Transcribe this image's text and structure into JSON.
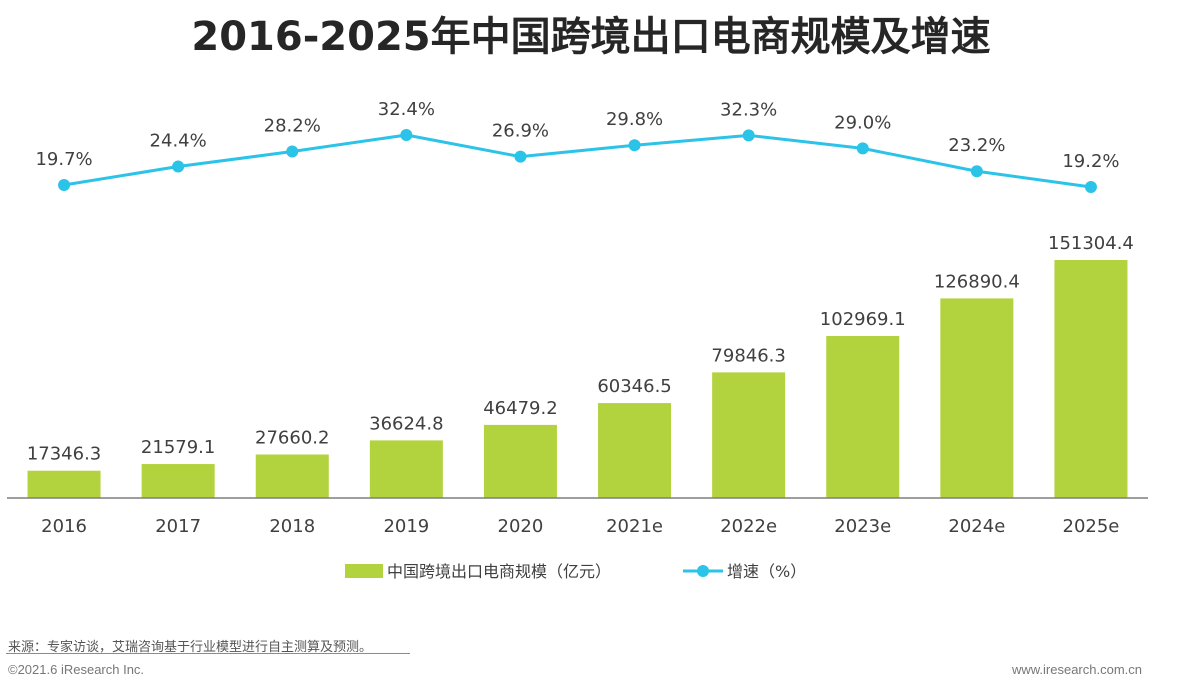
{
  "chart_data": {
    "type": "bar",
    "title": "2016-2025年中国跨境出口电商规模及增速",
    "categories": [
      "2016",
      "2017",
      "2018",
      "2019",
      "2020",
      "2021e",
      "2022e",
      "2023e",
      "2024e",
      "2025e"
    ],
    "value_labels": [
      "17346.3",
      "21579.1",
      "27660.2",
      "36624.8",
      "46479.2",
      "60346.5",
      "79846.3",
      "102969.1",
      "126890.4",
      "151304.4"
    ],
    "rate_labels": [
      "19.7%",
      "24.4%",
      "28.2%",
      "32.4%",
      "26.9%",
      "29.8%",
      "32.3%",
      "29.0%",
      "23.2%",
      "19.2%"
    ],
    "series": [
      {
        "name": "中国跨境出口电商规模（亿元）",
        "type": "bar",
        "color": "#b2d23e",
        "values": [
          17346.3,
          21579.1,
          27660.2,
          36624.8,
          46479.2,
          60346.5,
          79846.3,
          102969.1,
          126890.4,
          151304.4
        ]
      },
      {
        "name": "增速（%）",
        "type": "line",
        "color": "#2bc3e8",
        "values": [
          19.7,
          24.4,
          28.2,
          32.4,
          26.9,
          29.8,
          32.3,
          29.0,
          23.2,
          19.2
        ]
      }
    ],
    "legend_position": "bottom-center",
    "grid": false
  },
  "source": "来源：专家访谈，艾瑞咨询基于行业模型进行自主测算及预测。",
  "footer": {
    "copyright": "©2021.6 iResearch Inc.",
    "website": "www.iresearch.com.cn"
  }
}
